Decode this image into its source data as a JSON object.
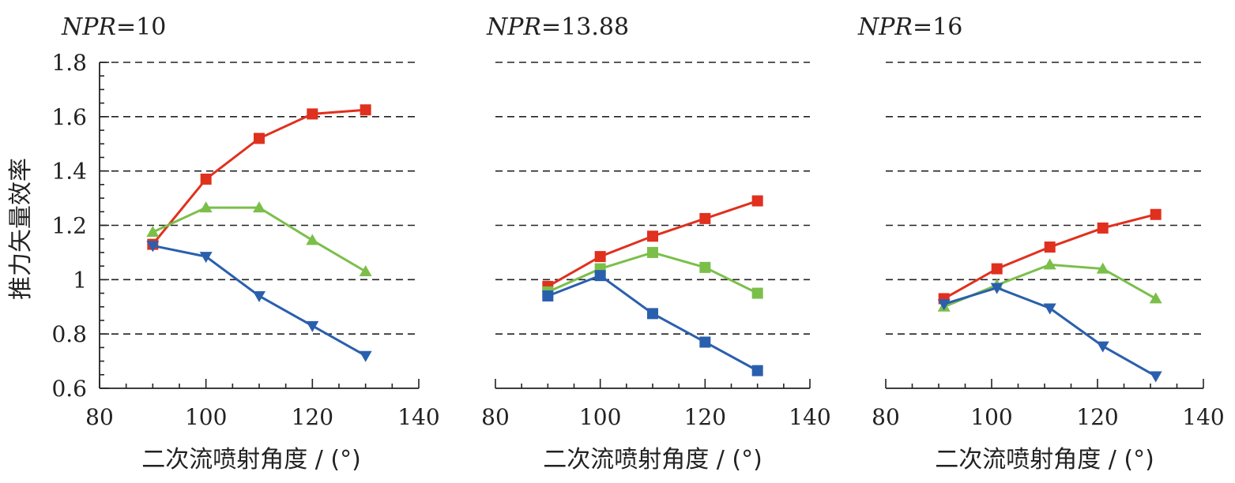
{
  "ylabel": "推力矢量效率",
  "chart_data": [
    {
      "type": "line",
      "title_italic": "NPR",
      "title_rest": "=10",
      "xlabel": "二次流喷射角度 / (°)",
      "xlim": [
        80,
        140
      ],
      "ylim": [
        0.6,
        1.8
      ],
      "xticks": [
        "80",
        "100",
        "120",
        "140"
      ],
      "yticks": [
        "0.6",
        "0.8",
        "1",
        "1.2",
        "1.4",
        "1.6",
        "1.8"
      ],
      "grid": "horizontal-dashed",
      "series": [
        {
          "color": "#e0301e",
          "marker": "square",
          "x": [
            90,
            100,
            110,
            120,
            130
          ],
          "y": [
            1.13,
            1.37,
            1.52,
            1.61,
            1.625
          ]
        },
        {
          "color": "#7bbf4a",
          "marker": "triangle-up",
          "x": [
            90,
            100,
            110,
            120,
            130
          ],
          "y": [
            1.175,
            1.265,
            1.265,
            1.145,
            1.03
          ]
        },
        {
          "color": "#2a5fad",
          "marker": "triangle-down",
          "x": [
            90,
            100,
            110,
            120,
            130
          ],
          "y": [
            1.125,
            1.085,
            0.94,
            0.83,
            0.72
          ]
        }
      ]
    },
    {
      "type": "line",
      "title_italic": "NPR",
      "title_rest": "=13.88",
      "xlabel": "二次流喷射角度 / (°)",
      "xlim": [
        80,
        140
      ],
      "ylim": [
        0.6,
        1.8
      ],
      "xticks": [
        "80",
        "100",
        "120",
        "140"
      ],
      "yticks": [],
      "grid": "horizontal-dashed",
      "series": [
        {
          "color": "#e0301e",
          "marker": "square",
          "x": [
            90,
            100,
            110,
            120,
            130
          ],
          "y": [
            0.975,
            1.085,
            1.16,
            1.225,
            1.29
          ]
        },
        {
          "color": "#7bbf4a",
          "marker": "square",
          "x": [
            90,
            100,
            110,
            120,
            130
          ],
          "y": [
            0.955,
            1.04,
            1.1,
            1.045,
            0.95
          ]
        },
        {
          "color": "#2a5fad",
          "marker": "square",
          "x": [
            90,
            100,
            110,
            120,
            130
          ],
          "y": [
            0.94,
            1.015,
            0.875,
            0.77,
            0.665
          ]
        }
      ]
    },
    {
      "type": "line",
      "title_italic": "NPR",
      "title_rest": "=16",
      "xlabel": "二次流喷射角度 / (°)",
      "xlim": [
        80,
        140
      ],
      "ylim": [
        0.6,
        1.8
      ],
      "xticks": [
        "80",
        "100",
        "120",
        "140"
      ],
      "yticks": [],
      "grid": "horizontal-dashed",
      "series": [
        {
          "color": "#e0301e",
          "marker": "square",
          "x": [
            91,
            101,
            111,
            121,
            131
          ],
          "y": [
            0.93,
            1.04,
            1.12,
            1.19,
            1.24
          ]
        },
        {
          "color": "#7bbf4a",
          "marker": "triangle-up",
          "x": [
            91,
            101,
            111,
            121,
            131
          ],
          "y": [
            0.9,
            0.98,
            1.055,
            1.04,
            0.93
          ]
        },
        {
          "color": "#2a5fad",
          "marker": "triangle-down",
          "x": [
            91,
            101,
            111,
            121,
            131
          ],
          "y": [
            0.91,
            0.97,
            0.895,
            0.755,
            0.645
          ]
        }
      ]
    }
  ]
}
